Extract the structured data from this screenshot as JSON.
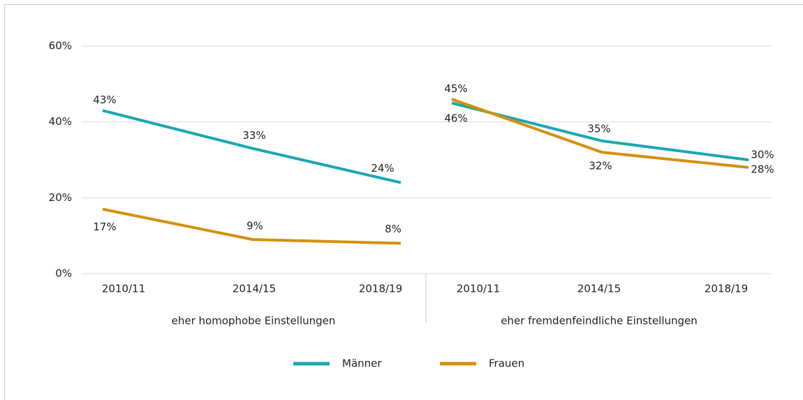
{
  "chart_data": {
    "type": "line",
    "categories": [
      "2010/11",
      "2014/15",
      "2018/19",
      "2010/11",
      "2014/15",
      "2018/19"
    ],
    "groups": [
      "eher homophobe Einstellungen",
      "eher fremdenfeindliche Einstellungen"
    ],
    "series": [
      {
        "name": "Männer",
        "color": "#1aa7b0",
        "values": [
          43,
          33,
          24,
          45,
          35,
          30
        ],
        "value_labels": [
          "43%",
          "33%",
          "24%",
          "45%",
          "35%",
          "30%"
        ]
      },
      {
        "name": "Frauen",
        "color": "#d4900e",
        "values": [
          17,
          9,
          8,
          46,
          32,
          28
        ],
        "value_labels": [
          "17%",
          "9%",
          "8%",
          "46%",
          "32%",
          "28%"
        ]
      }
    ],
    "ylim": [
      0,
      60
    ],
    "yticks": [
      {
        "value": 0,
        "label": "0%"
      },
      {
        "value": 20,
        "label": "20%"
      },
      {
        "value": 40,
        "label": "40%"
      },
      {
        "value": 60,
        "label": "60%"
      }
    ],
    "grid": true,
    "legend": "bottom"
  }
}
